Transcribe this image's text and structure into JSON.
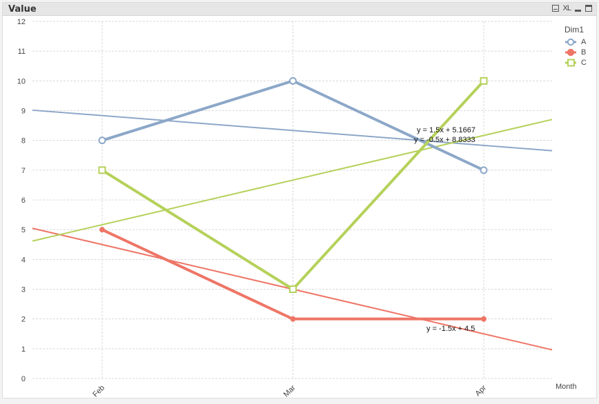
{
  "window": {
    "title": "Value",
    "icons": [
      "print-icon",
      "excel-export-icon",
      "minimize-icon",
      "maximize-icon"
    ],
    "xl_label": "XL"
  },
  "legend": {
    "title": "Dim1",
    "items": [
      {
        "label": "A",
        "color": "#8ca7c8",
        "marker": "circle-open"
      },
      {
        "label": "B",
        "color": "#ee7566",
        "marker": "circle-filled"
      },
      {
        "label": "C",
        "color": "#b5d15a",
        "marker": "square-open"
      }
    ]
  },
  "annotations": [
    {
      "text": "y = 1.5x + 5.1667",
      "series": "C"
    },
    {
      "text": "y = -0.5x + 8.8333",
      "series": "A"
    },
    {
      "text": "y = -1.5x + 4.5",
      "series": "B"
    }
  ],
  "chart_data": {
    "type": "line",
    "title": "Value",
    "xlabel": "Month",
    "ylabel": "",
    "categories": [
      "Feb",
      "Mar",
      "Apr"
    ],
    "ylim": [
      0,
      12
    ],
    "yticks": [
      0,
      1,
      2,
      3,
      4,
      5,
      6,
      7,
      8,
      9,
      10,
      11,
      12
    ],
    "grid": true,
    "legend_title": "Dim1",
    "legend_position": "right",
    "series": [
      {
        "name": "A",
        "values": [
          8,
          10,
          7
        ],
        "color": "#8ca7c8",
        "trendline": {
          "slope": -0.5,
          "intercept": 8.8333,
          "label": "y = -0.5x + 8.8333"
        }
      },
      {
        "name": "B",
        "values": [
          5,
          2,
          2
        ],
        "color": "#ee7566",
        "trendline": {
          "slope": -1.5,
          "intercept": 4.5,
          "label": "y = -1.5x + 4.5"
        }
      },
      {
        "name": "C",
        "values": [
          7,
          3,
          10
        ],
        "color": "#b5d15a",
        "trendline": {
          "slope": 1.5,
          "intercept": 5.1667,
          "label": "y = 1.5x + 5.1667"
        }
      }
    ]
  }
}
